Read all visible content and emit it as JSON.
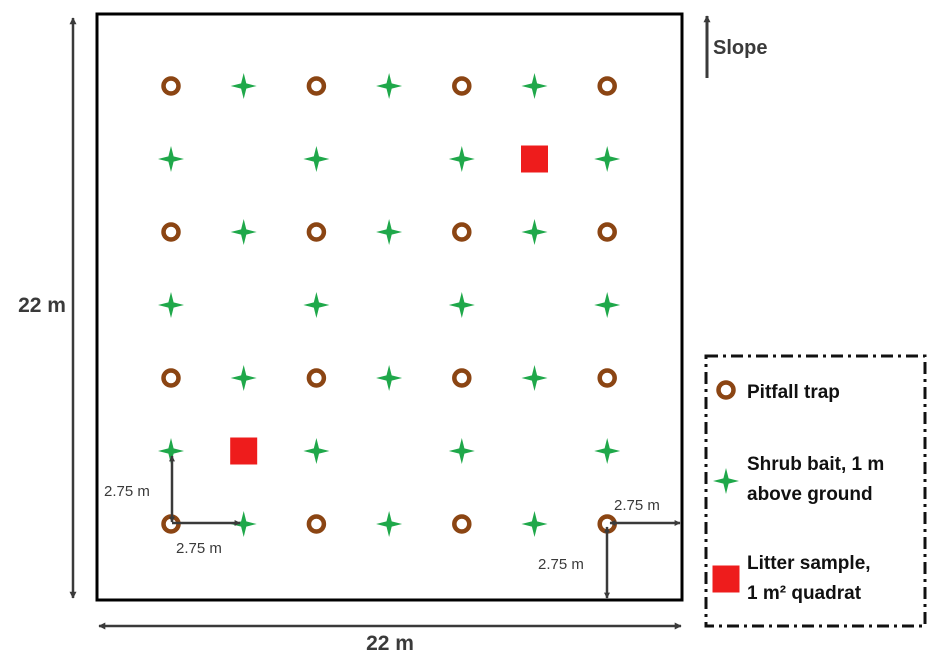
{
  "colors": {
    "pitfall": "#8B4513",
    "shrub": "#1fa84a",
    "litter": "#ee1c1c",
    "lines": "#3a3a3a",
    "plot_border": "#000000"
  },
  "icons": {
    "pitfall": "ring-icon",
    "shrub": "four-point-star-icon",
    "litter": "square-icon"
  },
  "plot": {
    "width_label": "22 m",
    "height_label": "22 m",
    "slope_label": "Slope"
  },
  "spacing_labels": {
    "left_vertical": "2.75 m",
    "left_horizontal": "2.75 m",
    "right_horizontal": "2.75 m",
    "right_vertical": "2.75 m"
  },
  "legend": {
    "items": [
      {
        "key": "pitfall",
        "lines": [
          "Pitfall trap"
        ]
      },
      {
        "key": "shrub",
        "lines": [
          "Shrub bait, 1 m",
          "above ground"
        ]
      },
      {
        "key": "litter",
        "lines": [
          "Litter sample,",
          "1 m² quadrat"
        ]
      }
    ]
  },
  "grid": {
    "rows": [
      [
        "pitfall",
        "shrub",
        "pitfall",
        "shrub",
        "pitfall",
        "shrub",
        "pitfall"
      ],
      [
        "shrub",
        "none",
        "shrub",
        "none",
        "shrub",
        "litter",
        "shrub"
      ],
      [
        "pitfall",
        "shrub",
        "pitfall",
        "shrub",
        "pitfall",
        "shrub",
        "pitfall"
      ],
      [
        "shrub",
        "none",
        "shrub",
        "none",
        "shrub",
        "none",
        "shrub"
      ],
      [
        "pitfall",
        "shrub",
        "pitfall",
        "shrub",
        "pitfall",
        "shrub",
        "pitfall"
      ],
      [
        "shrub",
        "litter",
        "shrub",
        "none",
        "shrub",
        "none",
        "shrub"
      ],
      [
        "pitfall",
        "shrub",
        "pitfall",
        "shrub",
        "pitfall",
        "shrub",
        "pitfall"
      ]
    ]
  }
}
